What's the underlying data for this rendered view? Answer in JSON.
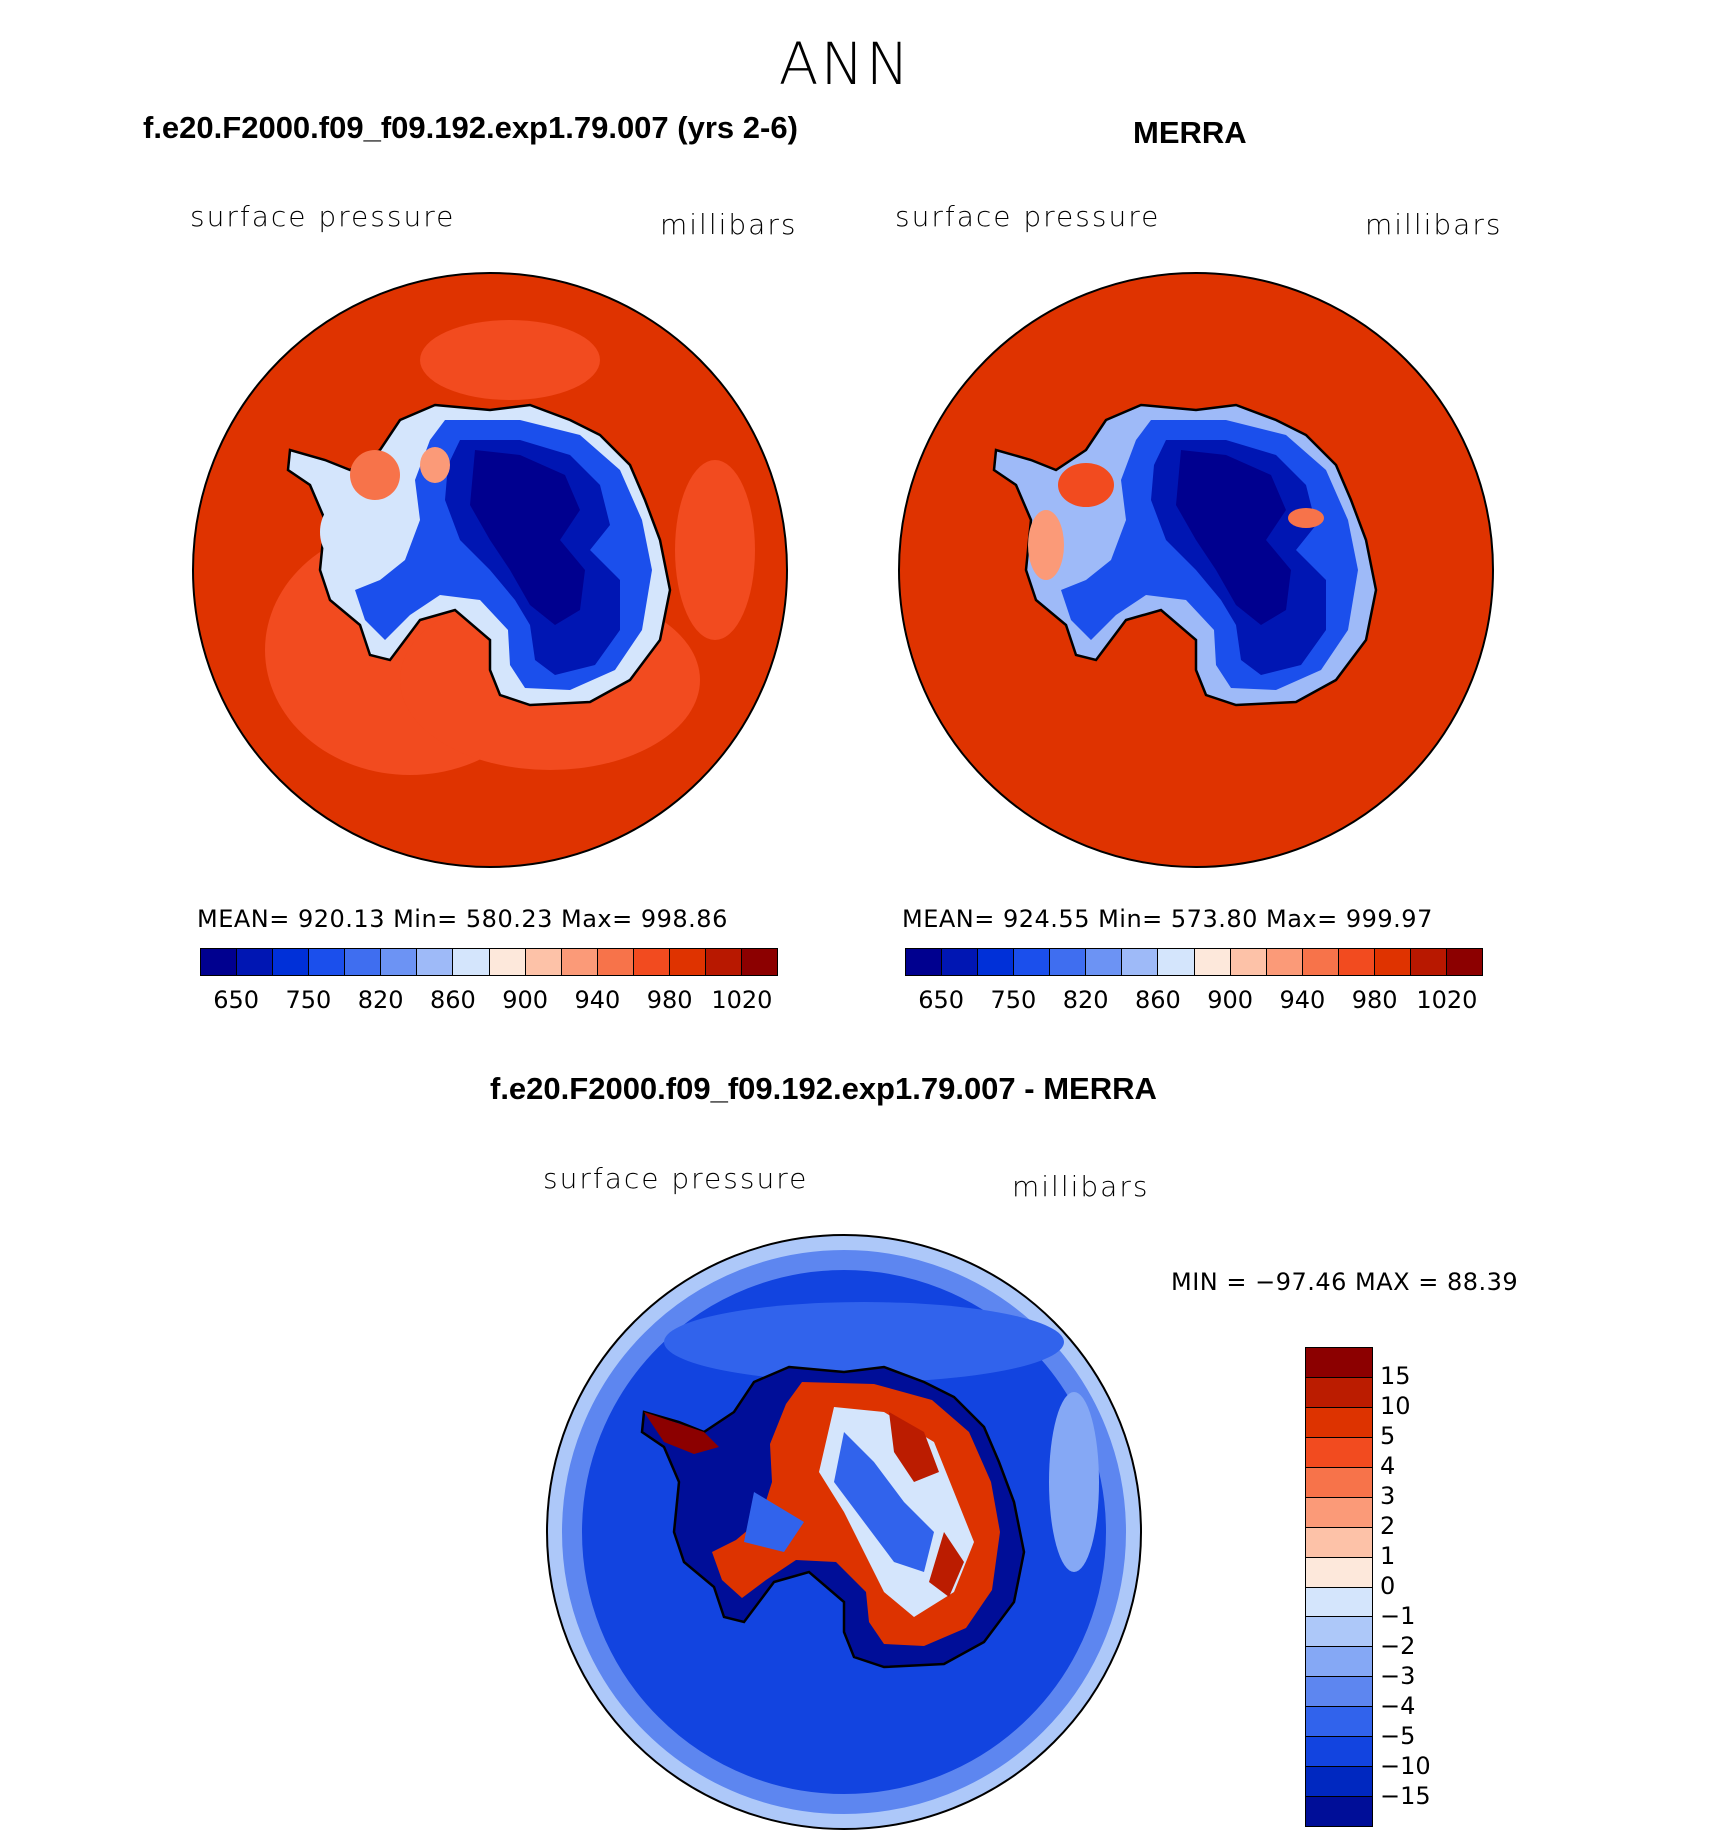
{
  "season": "ANN",
  "panel_left": {
    "title": "f.e20.F2000.f09_f09.192.exp1.79.007 (yrs 2-6)",
    "variable": "surface pressure",
    "units": "millibars",
    "stats": "MEAN= 920.13   Min= 580.23   Max= 998.86"
  },
  "panel_right": {
    "title": "MERRA",
    "variable": "surface pressure",
    "units": "millibars",
    "stats": "MEAN= 924.55   Min= 573.80   Max= 999.97"
  },
  "panel_diff": {
    "title": "f.e20.F2000.f09_f09.192.exp1.79.007 - MERRA",
    "variable": "surface pressure",
    "units": "millibars",
    "stats": "MIN = −97.46 MAX =   88.39"
  },
  "colorbar_top": {
    "colors": [
      "#00008f",
      "#0016b3",
      "#0030d8",
      "#1b4fec",
      "#3f6ef0",
      "#6c93f4",
      "#9ebaf8",
      "#d4e5fc",
      "#fde8db",
      "#fdc2a8",
      "#fb9a78",
      "#f7734a",
      "#f24b1f",
      "#df3300",
      "#b81800",
      "#8c0000"
    ],
    "labels": [
      "650",
      "750",
      "820",
      "860",
      "900",
      "940",
      "980",
      "1020"
    ]
  },
  "colorbar_diff": {
    "colors": [
      "#8c0000",
      "#bb1c00",
      "#dd3300",
      "#f24b1f",
      "#f7734a",
      "#fb9a78",
      "#fdc2a8",
      "#fde8db",
      "#d4e5fc",
      "#adc8f9",
      "#85a8f5",
      "#5d86f0",
      "#3163ec",
      "#1244e0",
      "#0028c0",
      "#000e98"
    ],
    "labels": [
      "15",
      "10",
      "5",
      "4",
      "3",
      "2",
      "1",
      "0",
      "−1",
      "−2",
      "−3",
      "−4",
      "−5",
      "−10",
      "−15"
    ]
  },
  "map_colors": {
    "ocean_model": "#df3300",
    "ocean_model_low": "#f24b1f",
    "land_high": "#00008f",
    "diff_ocean": "#0030d8",
    "diff_ocean_outer": "#5d86f0"
  }
}
